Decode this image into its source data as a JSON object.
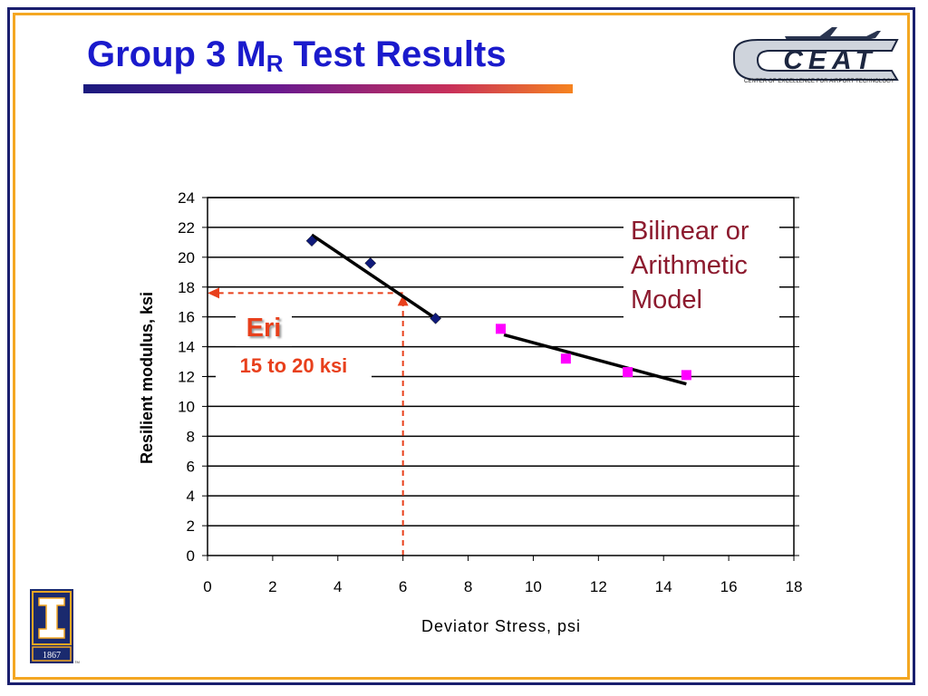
{
  "slide": {
    "title_main": "Group 3 M",
    "title_sub": "R",
    "title_tail": " Test Results"
  },
  "logo": {
    "wordmark": "CEAT",
    "caption": "CENTER OF EXCELLENCE FOR AIRPORT TECHNOLOGY"
  },
  "university_logo": {
    "year": "1867",
    "tm": "TM"
  },
  "annotations": {
    "model_lines": [
      "Bilinear or",
      "Arithmetic",
      "Model"
    ],
    "eri_label": "Eri",
    "range_label": "15 to 20 ksi"
  },
  "colors": {
    "title": "#1a1acc",
    "series1": "#0f1a7a",
    "series2": "#ff00ff",
    "annotation_red": "#e8401c",
    "model_text": "#8c1a2e",
    "frame_outer": "#1a1f6e",
    "frame_inner": "#f4a722"
  },
  "chart_data": {
    "type": "scatter",
    "title": "",
    "xlabel": "Deviator Stress, psi",
    "ylabel": "Resilient modulus, ksi",
    "xlim": [
      0,
      18
    ],
    "ylim": [
      0,
      24
    ],
    "xticks": [
      0,
      2,
      4,
      6,
      8,
      10,
      12,
      14,
      16,
      18
    ],
    "yticks": [
      0,
      2,
      4,
      6,
      8,
      10,
      12,
      14,
      16,
      18,
      20,
      22,
      24
    ],
    "grid": "horizontal",
    "series": [
      {
        "marker": "diamond",
        "points": [
          [
            3.2,
            21.1
          ],
          [
            5.0,
            19.6
          ],
          [
            7.0,
            15.9
          ]
        ],
        "fit_line": [
          [
            3.2,
            21.5
          ],
          [
            7.0,
            15.9
          ]
        ]
      },
      {
        "marker": "square",
        "points": [
          [
            9.0,
            15.2
          ],
          [
            11.0,
            13.2
          ],
          [
            12.9,
            12.3
          ],
          [
            14.7,
            12.1
          ]
        ],
        "fit_line": [
          [
            9.1,
            14.8
          ],
          [
            14.7,
            11.5
          ]
        ]
      }
    ],
    "guide": {
      "x": 6.0,
      "y": 17.6
    }
  }
}
